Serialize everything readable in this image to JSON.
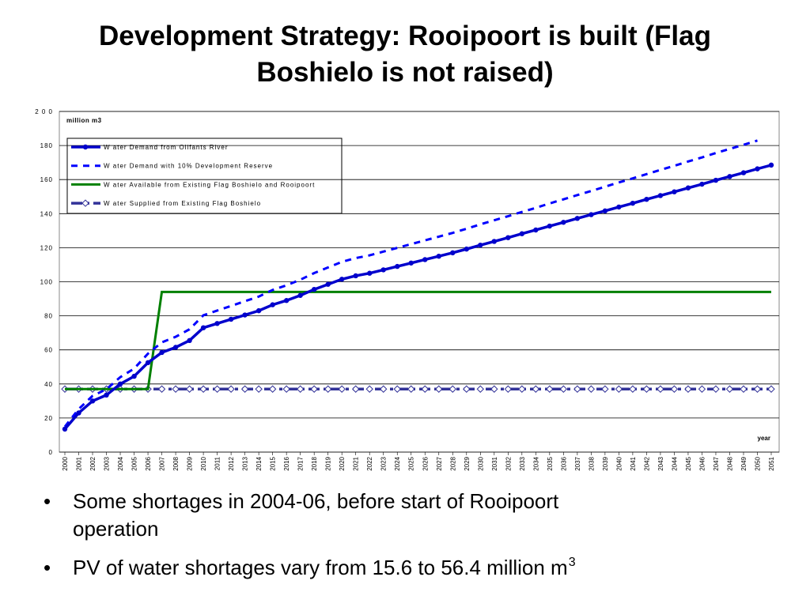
{
  "title_lines": [
    "Development Strategy: Rooipoort is built (Flag",
    "Boshielo is not raised)"
  ],
  "chart_data": {
    "type": "line",
    "ylabel": "million m3",
    "xlabel": "year",
    "categories": [
      "2000",
      "2001",
      "2002",
      "2003",
      "2004",
      "2005",
      "2006",
      "2007",
      "2008",
      "2009",
      "2010",
      "2011",
      "2012",
      "2013",
      "2014",
      "2015",
      "2016",
      "2017",
      "2018",
      "2019",
      "2020",
      "2021",
      "2022",
      "2023",
      "2024",
      "2025",
      "2026",
      "2027",
      "2028",
      "2029",
      "2030",
      "2031",
      "2032",
      "2033",
      "2034",
      "2035",
      "2036",
      "2037",
      "2038",
      "2039",
      "2040",
      "2041",
      "2042",
      "2043",
      "2044",
      "2045",
      "2046",
      "2047",
      "2048",
      "2049",
      "2050",
      "2051"
    ],
    "ylim": [
      0,
      200
    ],
    "yticks": [
      0,
      20,
      40,
      60,
      80,
      100,
      120,
      140,
      160,
      180,
      {
        "value": 200,
        "label": "2 0 0"
      }
    ],
    "grid": true,
    "series": [
      {
        "name": "W ater Demand from Olifants River",
        "color": "#0000cc",
        "style": "solid-circle",
        "values": [
          13.5,
          23,
          30,
          33.5,
          40,
          44.5,
          52.5,
          58.5,
          61.5,
          65.5,
          73,
          75.5,
          78,
          80.5,
          83,
          86.5,
          89,
          92,
          95.5,
          98.5,
          101.5,
          103.5,
          105,
          107,
          109,
          111,
          113,
          115,
          117,
          119.2,
          121.5,
          123.7,
          125.9,
          128.2,
          130.4,
          132.7,
          134.9,
          137.2,
          139.4,
          141.6,
          143.9,
          146.1,
          148.4,
          150.6,
          152.8,
          155.1,
          157.3,
          159.6,
          161.8,
          164,
          166.3,
          168.5
        ]
      },
      {
        "name": "W ater Demand with 10%  Development Reserve",
        "color": "#0000ff",
        "style": "dashed",
        "values": [
          14.9,
          25.3,
          33,
          36.9,
          44,
          49,
          57.8,
          64.4,
          67.7,
          72.1,
          80.3,
          83.1,
          85.8,
          88.6,
          91.3,
          95.2,
          97.9,
          101.2,
          105.1,
          108.4,
          111.7,
          113.9,
          115.5,
          117.7,
          119.9,
          122.1,
          124.3,
          126.5,
          128.7,
          131.1,
          133.7,
          136.1,
          138.5,
          141,
          143.4,
          146,
          148.4,
          150.9,
          153.3,
          155.8,
          158.3,
          160.7,
          163.2,
          165.7,
          168.1,
          170.6,
          173,
          175.6,
          178,
          180.4,
          182.9,
          null
        ]
      },
      {
        "name": "W ater Available from Existing Flag Boshielo and Rooipoort",
        "color": "#008000",
        "style": "solid",
        "values": [
          37,
          37,
          37,
          37,
          37,
          37,
          37,
          94,
          94,
          94,
          94,
          94,
          94,
          94,
          94,
          94,
          94,
          94,
          94,
          94,
          94,
          94,
          94,
          94,
          94,
          94,
          94,
          94,
          94,
          94,
          94,
          94,
          94,
          94,
          94,
          94,
          94,
          94,
          94,
          94,
          94,
          94,
          94,
          94,
          94,
          94,
          94,
          94,
          94,
          94,
          94,
          94
        ]
      },
      {
        "name": "W ater Supplied from Existing Flag Boshielo",
        "color": "#333399",
        "style": "dashdot-diamond",
        "values": [
          37,
          37,
          37,
          37,
          37,
          37,
          37,
          37,
          37,
          37,
          37,
          37,
          37,
          37,
          37,
          37,
          37,
          37,
          37,
          37,
          37,
          37,
          37,
          37,
          37,
          37,
          37,
          37,
          37,
          37,
          37,
          37,
          37,
          37,
          37,
          37,
          37,
          37,
          37,
          37,
          37,
          37,
          37,
          37,
          37,
          37,
          37,
          37,
          37,
          37,
          37,
          37
        ]
      }
    ]
  },
  "bullets": [
    {
      "lines": [
        "Some shortages in 2004-06, before start of Rooipoort",
        "operation"
      ]
    },
    {
      "lines": [
        "PV of water shortages vary from 15.6 to 56.4 million m"
      ],
      "sup": "3"
    }
  ]
}
